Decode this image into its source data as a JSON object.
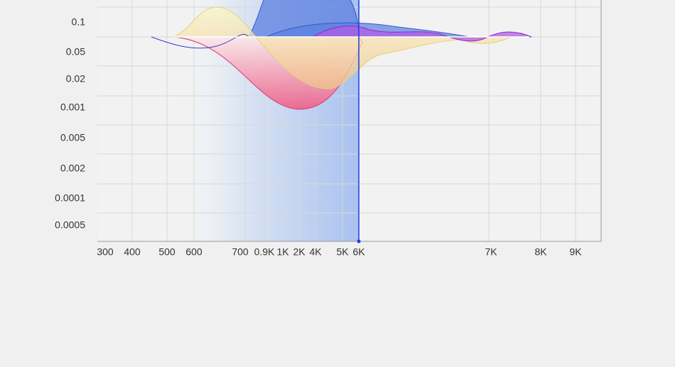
{
  "y_labels": [
    "0.1",
    "0.05",
    "0.02",
    "0.001",
    "0.005",
    "0.002",
    "0.0001",
    "0.0005"
  ],
  "x_labels": [
    "300",
    "400",
    "500",
    "600",
    "700",
    "0.9K",
    "1K",
    "2K",
    "4K",
    "5K",
    "6K",
    "7K",
    "8K",
    "9K"
  ]
}
